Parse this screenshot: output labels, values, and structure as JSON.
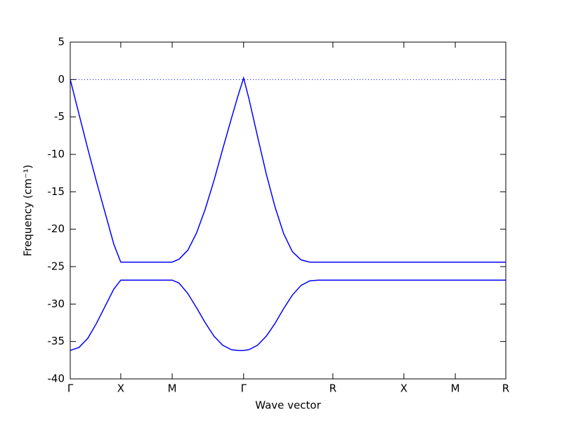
{
  "chart_data": {
    "type": "line",
    "x_label": "Wave vector",
    "y_label": "Frequency (cm⁻¹)",
    "x": [
      0,
      0.02,
      0.04,
      0.06,
      0.08,
      0.1,
      0.116,
      0.234,
      0.25,
      0.27,
      0.29,
      0.31,
      0.33,
      0.35,
      0.37,
      0.385,
      0.398,
      0.41,
      0.43,
      0.45,
      0.47,
      0.49,
      0.51,
      0.53,
      0.55,
      0.57,
      0.603,
      0.766,
      0.884,
      1.0
    ],
    "series": [
      {
        "color": "#0000ff",
        "values": [
          0,
          -4.6,
          -9.2,
          -13.6,
          -17.8,
          -22.0,
          -24.4,
          -24.4,
          -24.0,
          -22.8,
          -20.5,
          -17.3,
          -13.5,
          -9.3,
          -5.2,
          -2.2,
          0.2,
          -2.5,
          -7.6,
          -12.6,
          -17.0,
          -20.6,
          -23.0,
          -24.1,
          -24.4,
          -24.4,
          -24.4,
          -24.4,
          -24.4,
          -24.4
        ]
      },
      {
        "color": "#0000ff",
        "values": [
          -36.2,
          -35.8,
          -34.6,
          -32.6,
          -30.3,
          -28.0,
          -26.8,
          -26.8,
          -27.2,
          -28.6,
          -30.5,
          -32.5,
          -34.3,
          -35.5,
          -36.1,
          -36.2,
          -36.2,
          -36.1,
          -35.5,
          -34.3,
          -32.6,
          -30.6,
          -28.8,
          -27.5,
          -26.9,
          -26.8,
          -26.8,
          -26.8,
          -26.8,
          -26.8
        ]
      }
    ],
    "hline": 0,
    "xlim": [
      0,
      1.0
    ],
    "ylim": [
      -40,
      5
    ],
    "xticks": [
      {
        "value": 0,
        "label": "Γ"
      },
      {
        "value": 0.116,
        "label": "X"
      },
      {
        "value": 0.234,
        "label": "M"
      },
      {
        "value": 0.398,
        "label": "Γ"
      },
      {
        "value": 0.603,
        "label": "R"
      },
      {
        "value": 0.766,
        "label": "X"
      },
      {
        "value": 0.884,
        "label": "M"
      },
      {
        "value": 1.0,
        "label": "R"
      }
    ],
    "yticks": [
      -40,
      -35,
      -30,
      -25,
      -20,
      -15,
      -10,
      -5,
      0,
      5
    ]
  }
}
